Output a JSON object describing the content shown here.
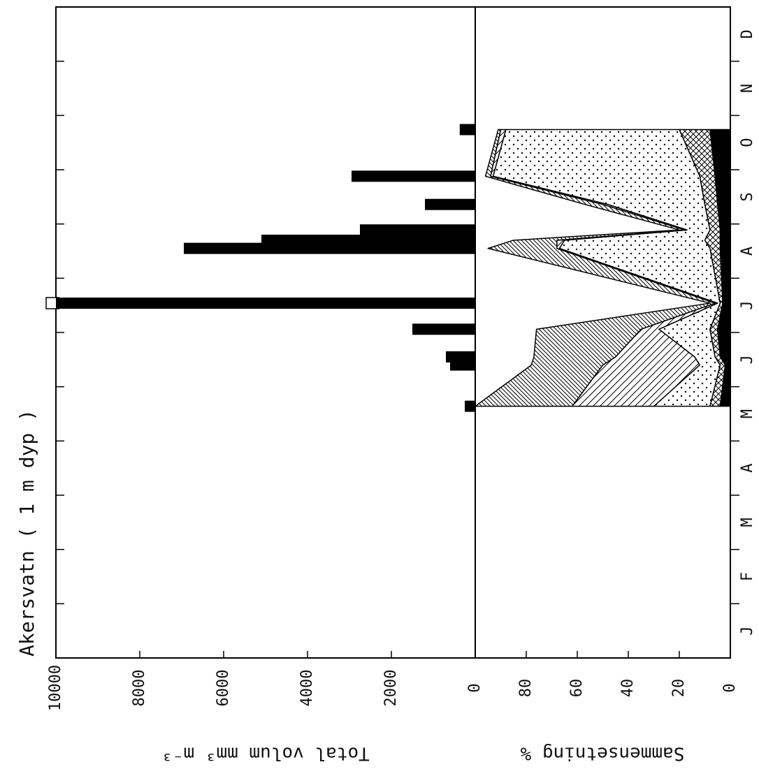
{
  "chart_data": [
    {
      "type": "bar",
      "title": "Akersvatn ( 1 m dyp )",
      "ylabel": "Total volum mm³ m⁻³",
      "categories": [
        "J",
        "F",
        "M",
        "A",
        "M",
        "J",
        "J",
        "A",
        "S",
        "O",
        "N",
        "D"
      ],
      "xlim": [
        0,
        12
      ],
      "xticks": [
        1,
        2,
        3,
        4,
        5,
        6,
        7,
        8,
        9,
        10,
        11
      ],
      "x": [
        4.64,
        5.4,
        5.55,
        6.06,
        6.54,
        7.55,
        7.7,
        7.89,
        8.36,
        8.88,
        9.74
      ],
      "values": [
        250,
        600,
        700,
        1500,
        10000,
        6950,
        5100,
        2750,
        1200,
        2950,
        370
      ],
      "color": "#000000",
      "ylim": [
        0,
        10000
      ],
      "yticks": [
        0,
        2000,
        4000,
        6000,
        8000,
        10000
      ]
    },
    {
      "type": "area",
      "ylabel": "Sammensetning %",
      "xlim": [
        0,
        12
      ],
      "x": [
        4.64,
        5.4,
        5.55,
        6.06,
        6.54,
        7.55,
        7.7,
        7.89,
        8.36,
        8.88,
        9.74
      ],
      "series": [
        {
          "pattern": "solid",
          "values": [
            4,
            2,
            4,
            5,
            3,
            4,
            4,
            4,
            5,
            6,
            8
          ]
        },
        {
          "pattern": "crosshatch",
          "values": [
            4,
            2,
            2,
            3,
            1,
            4,
            6,
            4,
            5,
            6,
            12
          ]
        },
        {
          "pattern": "dots",
          "values": [
            22,
            8,
            8,
            20,
            1,
            59,
            55,
            9,
            38,
            81,
            68
          ]
        },
        {
          "pattern": "hatch",
          "values": [
            32,
            38,
            31,
            7,
            1,
            1,
            3,
            1,
            2,
            1,
            2
          ]
        },
        {
          "pattern": "dense-hatch",
          "values": [
            38,
            28,
            32,
            41,
            2,
            27,
            17,
            2,
            7,
            2,
            1
          ]
        }
      ],
      "ylim": [
        0,
        100
      ],
      "yticks": [
        0,
        20,
        40,
        60,
        80
      ]
    }
  ]
}
